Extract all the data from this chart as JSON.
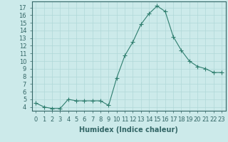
{
  "x": [
    0,
    1,
    2,
    3,
    4,
    5,
    6,
    7,
    8,
    9,
    10,
    11,
    12,
    13,
    14,
    15,
    16,
    17,
    18,
    19,
    20,
    21,
    22,
    23
  ],
  "y": [
    4.5,
    4.0,
    3.8,
    3.8,
    5.0,
    4.8,
    4.8,
    4.8,
    4.8,
    4.2,
    7.8,
    10.7,
    12.5,
    14.8,
    16.2,
    17.2,
    16.5,
    13.2,
    11.4,
    10.0,
    9.3,
    9.0,
    8.5,
    8.5
  ],
  "line_color": "#2e7d6e",
  "marker": "+",
  "marker_size": 4,
  "background_color": "#cceaea",
  "grid_color": "#b0d8d8",
  "xlabel": "Humidex (Indice chaleur)",
  "xlabel_fontsize": 7,
  "ylabel_ticks": [
    4,
    5,
    6,
    7,
    8,
    9,
    10,
    11,
    12,
    13,
    14,
    15,
    16,
    17
  ],
  "xlim": [
    -0.5,
    23.5
  ],
  "ylim": [
    3.5,
    17.8
  ],
  "xticks": [
    0,
    1,
    2,
    3,
    4,
    5,
    6,
    7,
    8,
    9,
    10,
    11,
    12,
    13,
    14,
    15,
    16,
    17,
    18,
    19,
    20,
    21,
    22,
    23
  ],
  "tick_fontsize": 6,
  "spine_color": "#336666"
}
